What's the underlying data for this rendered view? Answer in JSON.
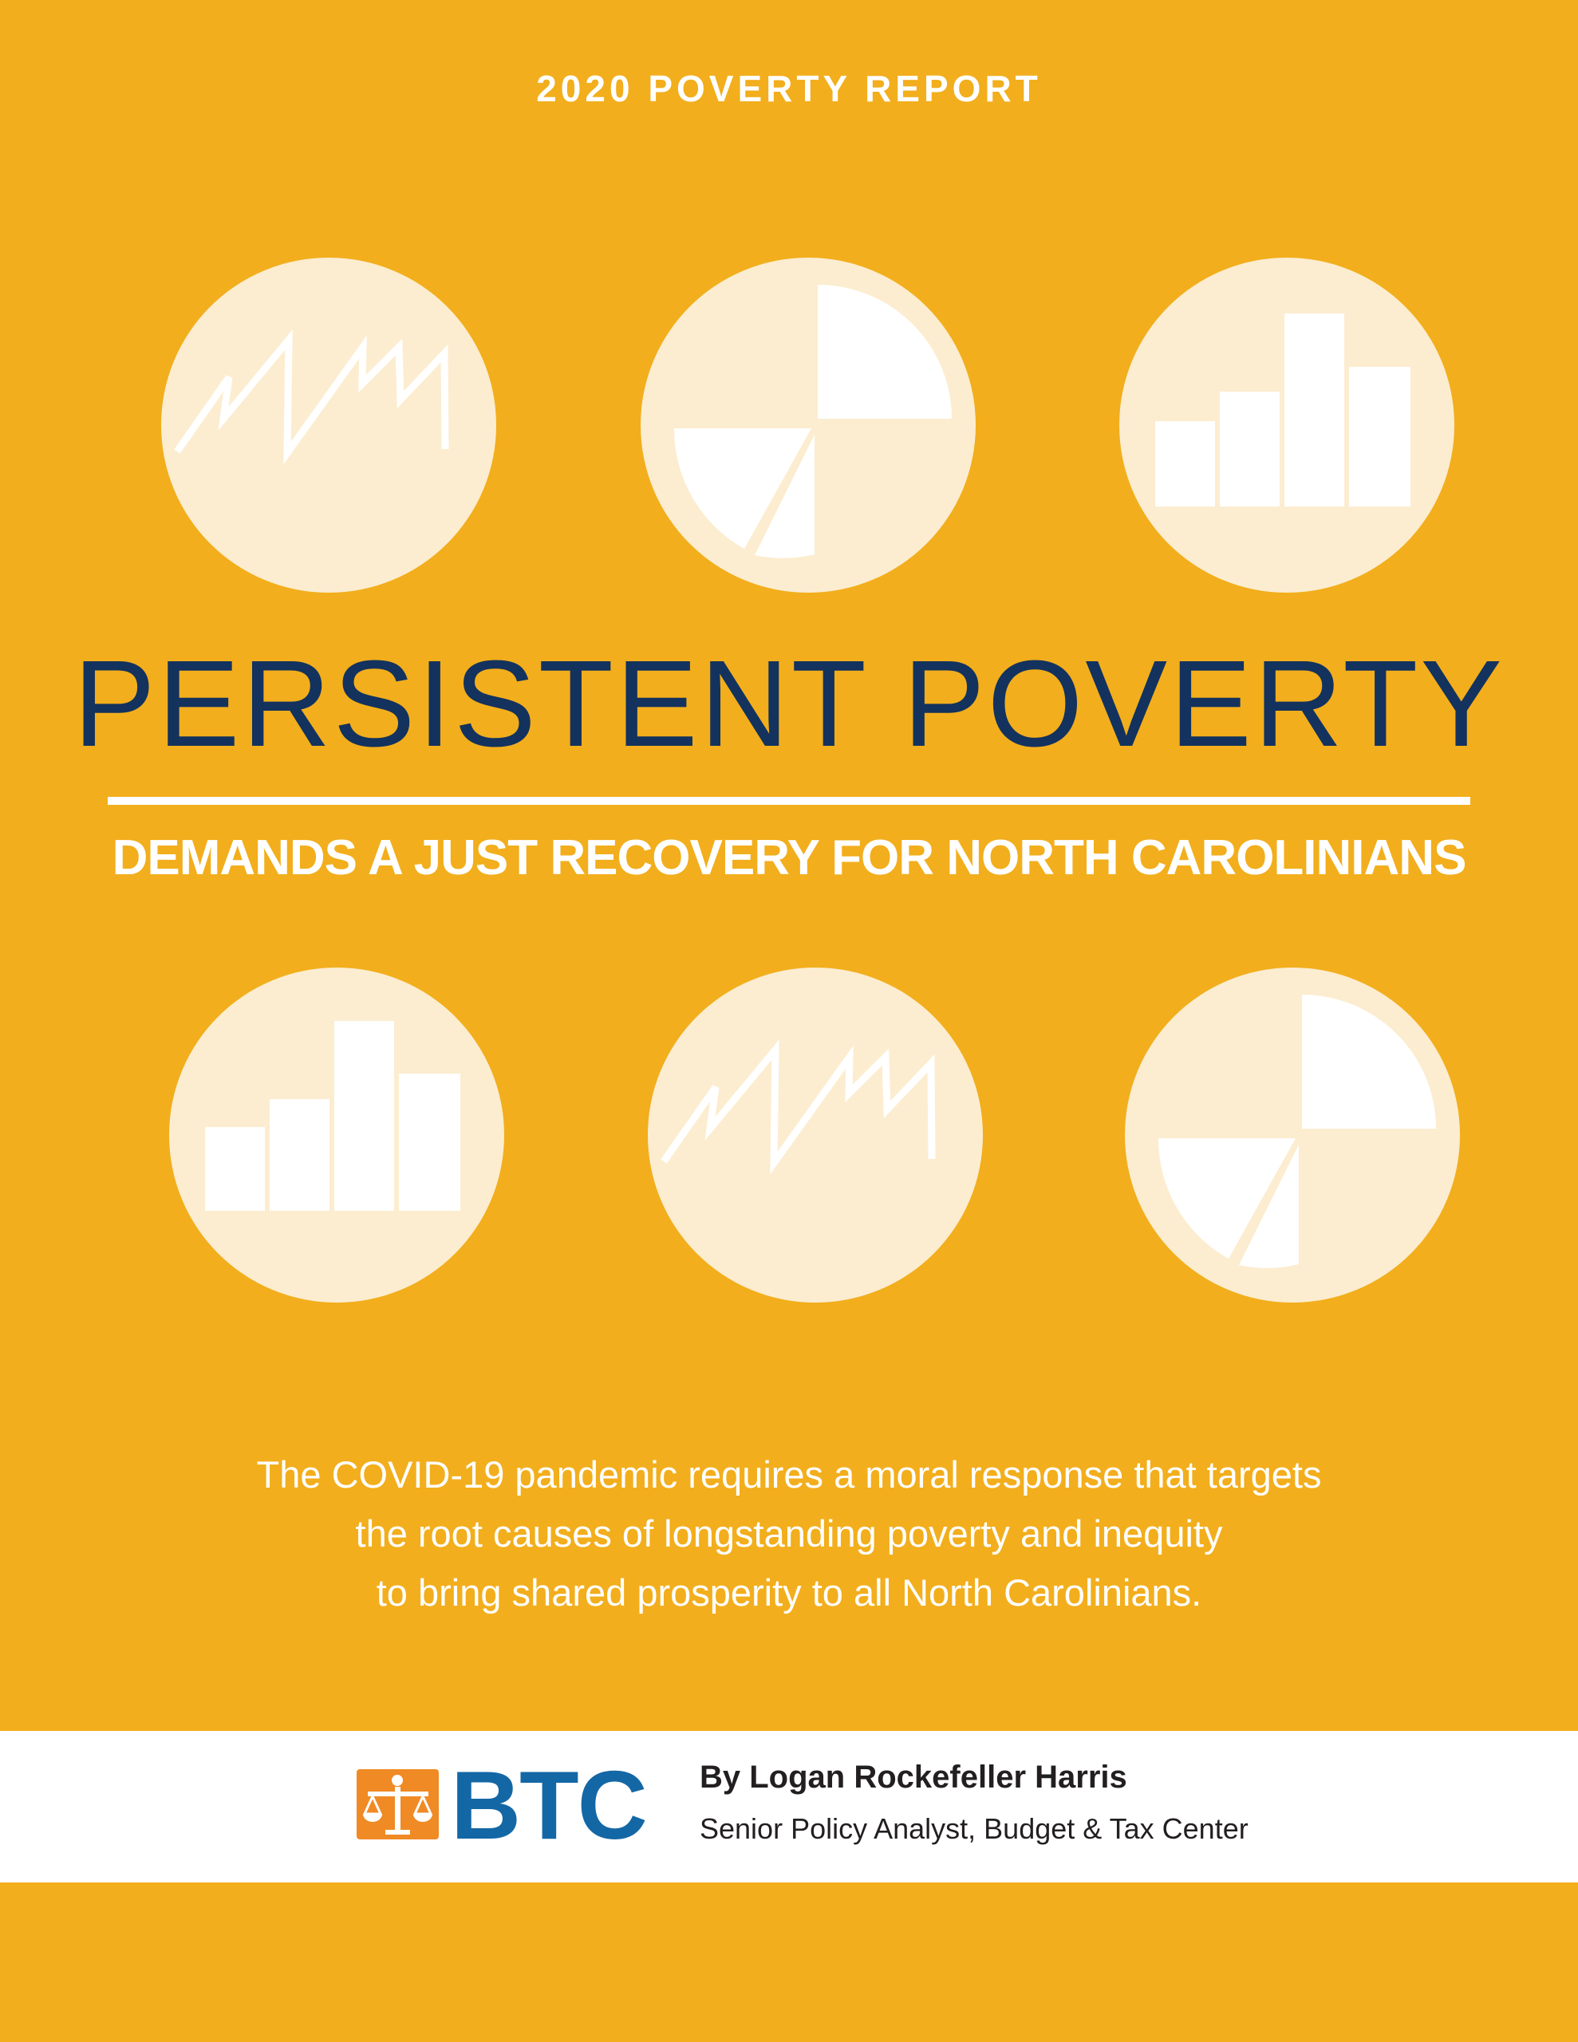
{
  "header": {
    "report_label": "2020 POVERTY REPORT"
  },
  "title": {
    "main": "PERSISTENT POVERTY",
    "subtitle": "DEMANDS A JUST RECOVERY FOR NORTH CAROLINIANS"
  },
  "icons": {
    "top_row": [
      "line-chart-icon",
      "pie-chart-icon",
      "bar-chart-icon"
    ],
    "bottom_row": [
      "bar-chart-icon",
      "line-chart-icon",
      "pie-chart-icon"
    ]
  },
  "intro": {
    "lines": [
      "The COVID-19 pandemic requires a moral response that targets",
      "the root causes of longstanding poverty and inequity",
      "to bring shared prosperity to all North Carolinians."
    ]
  },
  "footer": {
    "logo_text": "BTC",
    "author": "By Logan Rockefeller Harris",
    "role": "Senior Policy Analyst,  Budget & Tax Center"
  },
  "colors": {
    "background": "#F2AE1C",
    "circle": "#FCEDD0",
    "title": "#13325E",
    "logo_blue": "#1467A5",
    "logo_orange": "#F08A24"
  }
}
